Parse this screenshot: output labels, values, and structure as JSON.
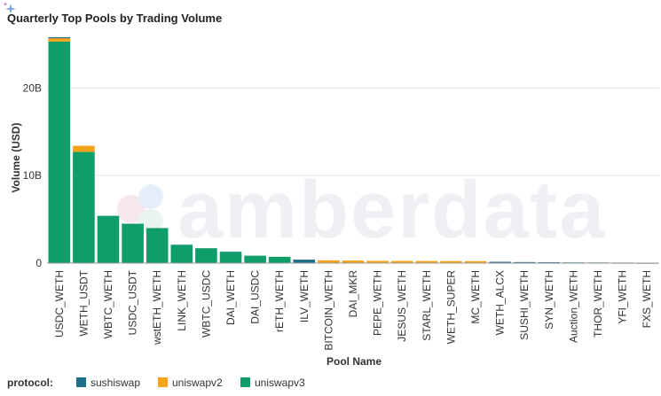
{
  "chart_data": {
    "type": "bar",
    "stacked": true,
    "title": "Quarterly Top Pools by Trading Volume",
    "xlabel": "Pool Name",
    "ylabel": "Volume (USD)",
    "ylim": [
      0,
      26000000000
    ],
    "y_ticks": [
      {
        "value": 0,
        "label": "0"
      },
      {
        "value": 10000000000,
        "label": "10B"
      },
      {
        "value": 20000000000,
        "label": "20B"
      }
    ],
    "grid": true,
    "legend_title": "protocol:",
    "legend_position": "bottom-left",
    "watermark": "amberdata",
    "categories": [
      "USDC_WETH",
      "WETH_USDT",
      "WBTC_WETH",
      "USDC_USDT",
      "wstETH_WETH",
      "LINK_WETH",
      "WBTC_USDC",
      "DAI_WETH",
      "DAI_USDC",
      "rETH_WETH",
      "ILV_WETH",
      "BITCOIN_WETH",
      "DAI_MKR",
      "PEPE_WETH",
      "JESUS_WETH",
      "STARL_WETH",
      "WETH_SUPER",
      "MC_WETH",
      "WETH_ALCX",
      "SUSHI_WETH",
      "SYN_WETH",
      "Auction_WETH",
      "THOR_WETH",
      "YFI_WETH",
      "FXS_WETH"
    ],
    "series": [
      {
        "name": "sushiswap",
        "color": "#1f6e8c",
        "values": [
          100000000,
          0,
          0,
          0,
          0,
          0,
          0,
          0,
          0,
          0,
          400000000,
          0,
          0,
          0,
          0,
          0,
          0,
          0,
          150000000,
          120000000,
          100000000,
          80000000,
          70000000,
          60000000,
          50000000
        ]
      },
      {
        "name": "uniswapv2",
        "color": "#f5a31a",
        "values": [
          400000000,
          700000000,
          0,
          0,
          0,
          0,
          0,
          0,
          0,
          0,
          0,
          320000000,
          300000000,
          260000000,
          250000000,
          240000000,
          230000000,
          220000000,
          0,
          0,
          0,
          0,
          0,
          0,
          0
        ]
      },
      {
        "name": "uniswapv3",
        "color": "#0f9d6a",
        "values": [
          25300000000,
          12700000000,
          5400000000,
          4500000000,
          4000000000,
          2100000000,
          1700000000,
          1300000000,
          850000000,
          720000000,
          0,
          0,
          0,
          0,
          0,
          0,
          0,
          0,
          0,
          0,
          0,
          0,
          0,
          0,
          0
        ]
      }
    ]
  }
}
